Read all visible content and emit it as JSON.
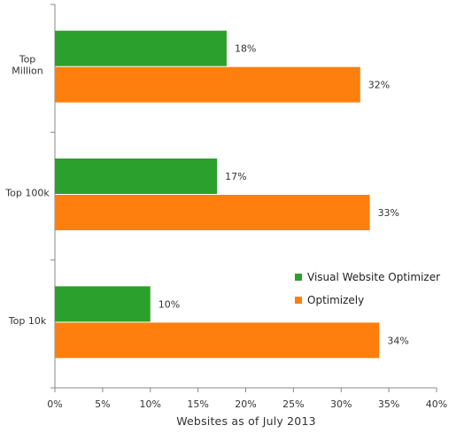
{
  "chart_data": {
    "type": "bar",
    "orientation": "horizontal",
    "categories": [
      "Top Million",
      "Top 100k",
      "Top 10k"
    ],
    "category_label_lines": [
      [
        "Top",
        "Million"
      ],
      [
        "Top 100k"
      ],
      [
        "Top 10k"
      ]
    ],
    "series": [
      {
        "name": "Visual Website Optimizer",
        "color": "#2ca02c",
        "values": [
          18,
          17,
          10
        ],
        "labels": [
          "18%",
          "17%",
          "10%"
        ]
      },
      {
        "name": "Optimizely",
        "color": "#ff7f0e",
        "values": [
          32,
          33,
          34
        ],
        "labels": [
          "32%",
          "33%",
          "34%"
        ]
      }
    ],
    "xlim": [
      0,
      40
    ],
    "xticks": [
      0,
      5,
      10,
      15,
      20,
      25,
      30,
      35,
      40
    ],
    "xtick_labels": [
      "0%",
      "5%",
      "10%",
      "15%",
      "20%",
      "25%",
      "30%",
      "35%",
      "40%"
    ],
    "xlabel": "Websites as of July 2013",
    "grid": false,
    "legend_position": "right"
  }
}
